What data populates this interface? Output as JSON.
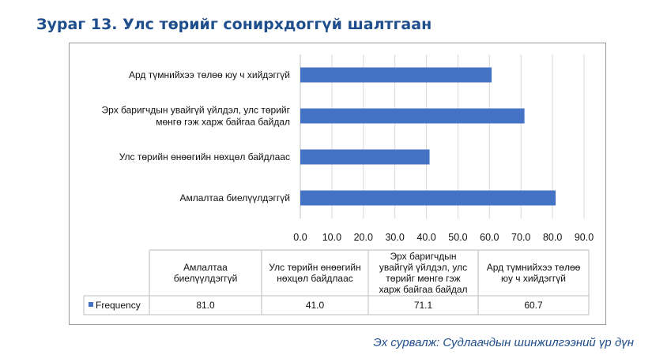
{
  "title": "Зураг 13. Улс төрийг сонирхдоггүй шалтгаан",
  "source": "Эх сурвалж: Судлаачдын шинжилгээний үр дүн",
  "colors": {
    "bar": "#4472c4",
    "title": "#1f4e8c",
    "grid": "#d9d9d9",
    "border": "#9a9a9a"
  },
  "chart_data": {
    "type": "bar",
    "orientation": "horizontal",
    "categories": [
      "Амлалтаа биелүүлдэггүй",
      "Улс төрийн өнөөгийн нөхцөл байдлаас",
      "Эрх баригчдын увайгүй үйлдэл, улс төрийг мөнгө гэж харж байгаа байдал",
      "Ард түмнийхээ төлөө юу ч хийдэггүй"
    ],
    "category_label_lines": [
      [
        "Амлалтаа биелүүлдэггүй"
      ],
      [
        "Улс төрийн өнөөгийн нөхцөл байдлаас"
      ],
      [
        "Эрх баригчдын увайгүй үйлдэл, улс төрийг",
        "мөнгө гэж харж байгаа байдал"
      ],
      [
        "Ард түмнийхээ төлөө юу ч хийдэггүй"
      ]
    ],
    "series": [
      {
        "name": "Frequency",
        "values": [
          81.0,
          41.0,
          71.1,
          60.7
        ]
      }
    ],
    "xlim": [
      0,
      90
    ],
    "ticks": [
      "0.0",
      "10.0",
      "20.0",
      "30.0",
      "40.0",
      "50.0",
      "60.0",
      "70.0",
      "80.0",
      "90.0"
    ],
    "grid": true,
    "data_table": {
      "header_lines": [
        [
          "Амлалтаа",
          "биелүүлдэггүй"
        ],
        [
          "Улс төрийн өнөөгийн",
          "нөхцөл байдлаас"
        ],
        [
          "Эрх баригчдын",
          "увайгүй үйлдэл, улс",
          "төрийг мөнгө гэж",
          "харж байгаа байдал"
        ],
        [
          "Ард түмнийхээ төлөө",
          "юу ч хийдэггүй"
        ]
      ],
      "row_label": "Frequency",
      "values": [
        "81.0",
        "41.0",
        "71.1",
        "60.7"
      ]
    }
  }
}
